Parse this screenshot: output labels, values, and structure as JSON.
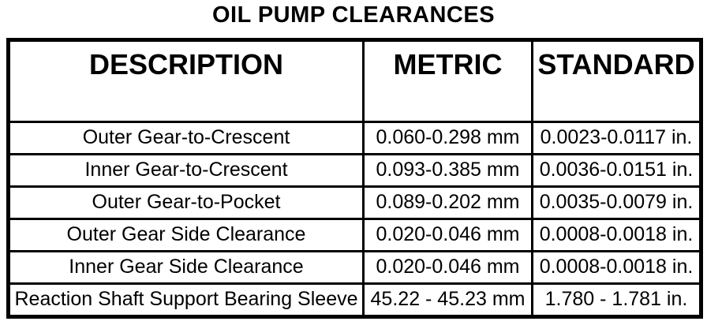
{
  "page": {
    "title": "OIL PUMP CLEARANCES"
  },
  "table": {
    "columns": [
      "DESCRIPTION",
      "METRIC",
      "STANDARD"
    ],
    "rows": [
      {
        "description": "Outer Gear-to-Crescent",
        "metric": "0.060-0.298 mm",
        "standard": "0.0023-0.0117 in."
      },
      {
        "description": "Inner Gear-to-Crescent",
        "metric": "0.093-0.385 mm",
        "standard": "0.0036-0.0151 in."
      },
      {
        "description": "Outer Gear-to-Pocket",
        "metric": "0.089-0.202 mm",
        "standard": "0.0035-0.0079 in."
      },
      {
        "description": "Outer Gear Side Clearance",
        "metric": "0.020-0.046 mm",
        "standard": "0.0008-0.0018 in."
      },
      {
        "description": "Inner Gear Side Clearance",
        "metric": "0.020-0.046 mm",
        "standard": "0.0008-0.0018 in."
      },
      {
        "description": "Reaction Shaft Support Bearing Sleeve",
        "metric": "45.22 - 45.23 mm",
        "standard": "1.780 - 1.781 in."
      }
    ],
    "colors": {
      "border": "#000000",
      "background": "#ffffff",
      "text": "#000000"
    }
  }
}
